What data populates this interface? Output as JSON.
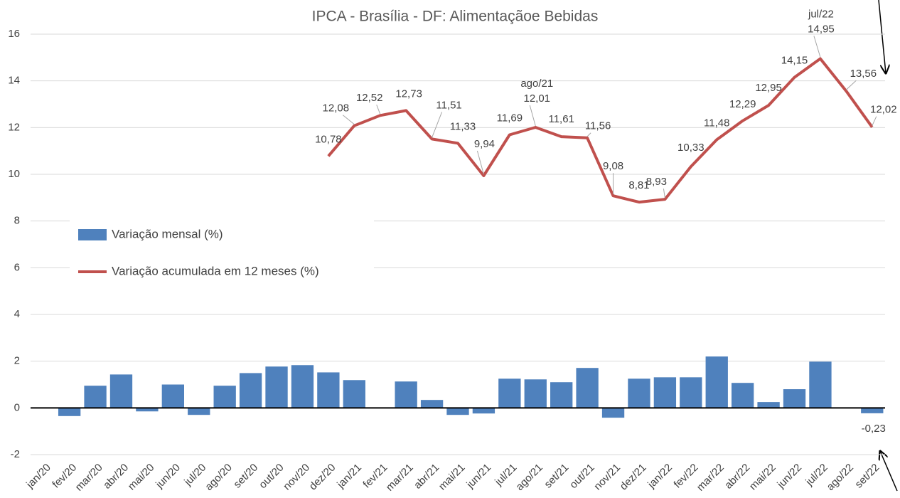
{
  "chart_data": {
    "type": "bar+line",
    "title": "IPCA - Brasília - DF:  Alimentaçãoe  Bebidas",
    "categories": [
      "jan/20",
      "fev/20",
      "mar/20",
      "abr/20",
      "mai/20",
      "jun/20",
      "jul/20",
      "ago/20",
      "set/20",
      "out/20",
      "nov/20",
      "dez/20",
      "jan/21",
      "fev/21",
      "mar/21",
      "abr/21",
      "mai/21",
      "jun/21",
      "jul/21",
      "ago/21",
      "set/21",
      "out/21",
      "nov/21",
      "dez/21",
      "jan/22",
      "fev/22",
      "mar/22",
      "abr/22",
      "mai/22",
      "jun/22",
      "jul/22",
      "ago/22",
      "set/22"
    ],
    "series": [
      {
        "name": "Variação mensal (%)",
        "type": "bar",
        "color": "#4f81bd",
        "values": [
          0,
          -0.35,
          0.95,
          1.43,
          -0.15,
          1.0,
          -0.3,
          0.95,
          1.49,
          1.77,
          1.83,
          1.52,
          1.19,
          0,
          1.13,
          0.34,
          -0.3,
          -0.24,
          1.25,
          1.22,
          1.1,
          1.71,
          -0.42,
          1.25,
          1.31,
          1.31,
          2.2,
          1.07,
          0.25,
          0.8,
          1.98,
          0,
          -0.23
        ],
        "value_labels": [
          null,
          null,
          null,
          null,
          null,
          null,
          null,
          null,
          null,
          null,
          null,
          null,
          null,
          null,
          null,
          null,
          null,
          null,
          null,
          null,
          null,
          null,
          null,
          null,
          null,
          null,
          null,
          null,
          null,
          null,
          null,
          null,
          "-0,23"
        ]
      },
      {
        "name": "Variação acumulada em 12 meses (%)",
        "type": "line",
        "color": "#c0504d",
        "values": [
          null,
          null,
          null,
          null,
          null,
          null,
          null,
          null,
          null,
          null,
          null,
          10.78,
          12.08,
          12.52,
          12.73,
          11.51,
          11.33,
          9.94,
          11.69,
          12.01,
          11.61,
          11.56,
          9.08,
          8.81,
          8.93,
          10.33,
          11.48,
          12.29,
          12.95,
          14.15,
          14.95,
          13.56,
          12.02
        ],
        "value_labels": [
          null,
          null,
          null,
          null,
          null,
          null,
          null,
          null,
          null,
          null,
          null,
          "10,78",
          "12,08",
          "12,52",
          "12,73",
          "11,51",
          "11,33",
          "9,94",
          "11,69",
          "12,01",
          "11,61",
          "11,56",
          "9,08",
          "8,81",
          "8,93",
          "10,33",
          "11,48",
          "12,29",
          "12,95",
          "14,15",
          "14,95",
          "13,56",
          "12,02"
        ]
      }
    ],
    "annotations": [
      "ago/21",
      "jul/22"
    ],
    "ylim": [
      -2,
      16
    ],
    "yticks": [
      -2,
      0,
      2,
      4,
      6,
      8,
      10,
      12,
      14,
      16
    ],
    "grid": true,
    "legend": "left"
  }
}
